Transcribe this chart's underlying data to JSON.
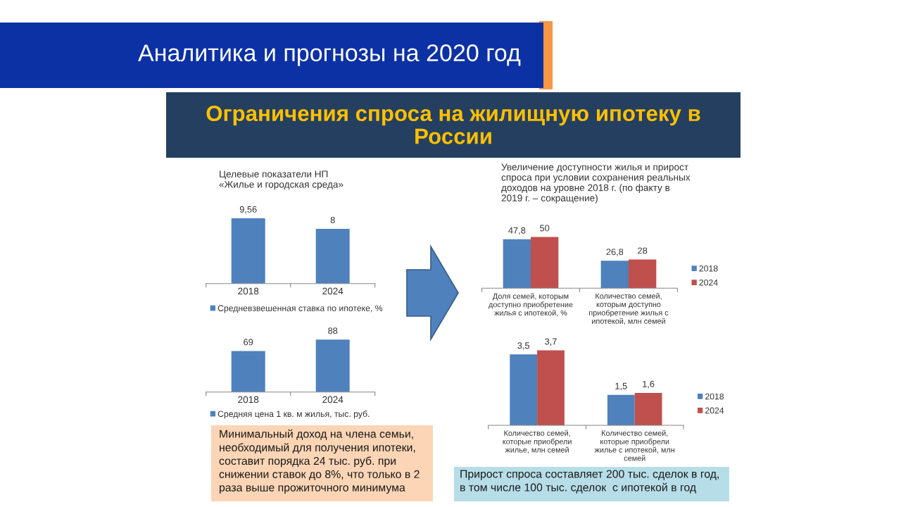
{
  "chart_data": [
    {
      "type": "other",
      "title": "Аналитика и прогнозы на 2020 год",
      "subtitle": "Ограничения спроса на жилищную ипотеку в\nРоссии"
    },
    {
      "type": "bar",
      "title": "Целевые показатели НП\n«Жилье и городская среда»",
      "categories": [
        "2018",
        "2024"
      ],
      "series": [
        {
          "name": "Средневзвешенная ставка по ипотеке, %",
          "color": "#4f81bd",
          "values": [
            9.56,
            8
          ],
          "value_labels": [
            "9,56",
            "8"
          ]
        }
      ],
      "tick_labels": "x",
      "legend": "bottom"
    },
    {
      "type": "bar",
      "categories": [
        "2018",
        "2024"
      ],
      "series": [
        {
          "name": "Средняя цена 1 кв. м жилья, тыс. руб.",
          "color": "#4f81bd",
          "values": [
            69,
            88
          ],
          "value_labels": [
            "69",
            "88"
          ]
        }
      ],
      "tick_labels": "x",
      "legend": "bottom",
      "annotations": [
        "Минимальный доход на члена семьи,\nнеобходимый для получения ипотеки,\nсоставит порядка 24 тыс. руб. при\nснижении ставок до 8%, что только в 2\nраза выше прожиточного минимума"
      ]
    },
    {
      "type": "bar",
      "title": "Увеличение доступности жилья и прирост\nспроса при условии сохранения реальных\nдоходов на уровне 2018 г. (по факту в\n2019 г. – сокращение)",
      "categories": [
        "Доля семей, которым\nдоступно приобретение\nжилья с ипотекой, %",
        "Количество семей,\nкоторым доступно\nприобретение жилья с\nипотекой, млн семей"
      ],
      "series": [
        {
          "name": "2018",
          "color": "#4f81bd",
          "values": [
            47.8,
            26.8
          ],
          "value_labels": [
            "47,8",
            "26,8"
          ]
        },
        {
          "name": "2024",
          "color": "#c0504d",
          "values": [
            50,
            28
          ],
          "value_labels": [
            "50",
            "28"
          ]
        }
      ],
      "tick_labels": "x",
      "legend": "right"
    },
    {
      "type": "bar",
      "categories": [
        "Количество семей,\nкоторые приобрели\nжилье, млн семей",
        "Количество семей,\nкоторые приобрели\nжилье с ипотекой, млн\nсемей"
      ],
      "series": [
        {
          "name": "2018",
          "color": "#4f81bd",
          "values": [
            3.5,
            1.5
          ],
          "value_labels": [
            "3,5",
            "1,5"
          ]
        },
        {
          "name": "2024",
          "color": "#c0504d",
          "values": [
            3.7,
            1.6
          ],
          "value_labels": [
            "3,7",
            "1,6"
          ]
        }
      ],
      "tick_labels": "x",
      "legend": "right",
      "annotations": [
        "Прирост спроса составляет 200 тыс. сделок в год,\nв том числе 100 тыс. сделок  с ипотекой в год"
      ]
    }
  ]
}
